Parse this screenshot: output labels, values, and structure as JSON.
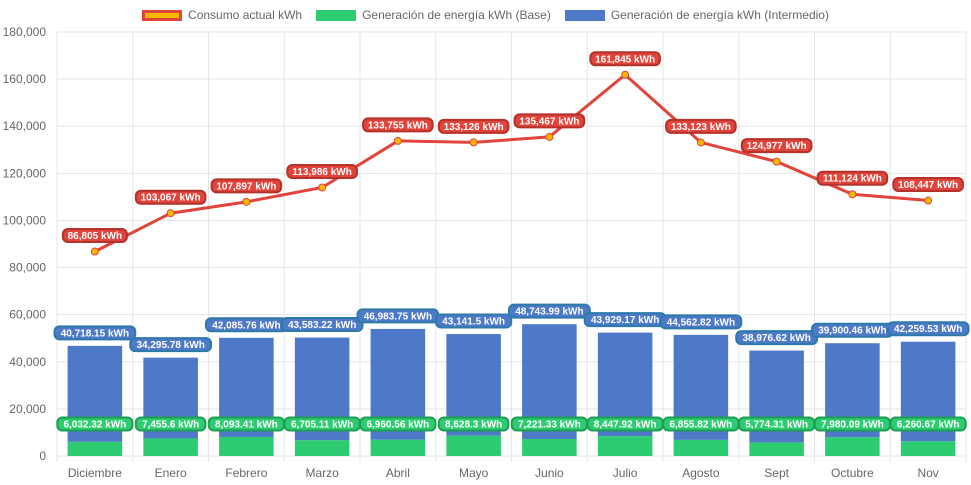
{
  "chart_data": {
    "type": "bar+line",
    "categories": [
      "Diciembre",
      "Enero",
      "Febrero",
      "Marzo",
      "Abril",
      "Mayo",
      "Junio",
      "Julio",
      "Agosto",
      "Sept",
      "Octubre",
      "Nov"
    ],
    "ylim": [
      0,
      180000
    ],
    "yticks": [
      0,
      20000,
      40000,
      60000,
      80000,
      100000,
      120000,
      140000,
      160000,
      180000
    ],
    "ytick_labels": [
      "0",
      "20,000",
      "40,000",
      "60,000",
      "80,000",
      "100,000",
      "120,000",
      "140,000",
      "160,000",
      "180,000"
    ],
    "grid": true,
    "legend_position": "top-center",
    "series": [
      {
        "name": "Consumo actual kWh",
        "type": "line",
        "color": "#e0443a",
        "point_color": "#f5b800",
        "values": [
          86805,
          103067,
          107897,
          113986,
          133755,
          133126,
          135467,
          161845,
          133123,
          124977,
          111124,
          108447
        ],
        "labels": [
          "86,805 kWh",
          "103,067 kWh",
          "107,897 kWh",
          "113,986 kWh",
          "133,755 kWh",
          "133,126 kWh",
          "135,467 kWh",
          "161,845 kWh",
          "133,123 kWh",
          "124,977 kWh",
          "111,124 kWh",
          "108,447 kWh"
        ]
      },
      {
        "name": "Generación de energía kWh (Base)",
        "type": "bar-stacked",
        "color": "#2ecc71",
        "values": [
          6032.32,
          7455.6,
          8093.41,
          6705.11,
          6960.56,
          8628.3,
          7221.33,
          8447.92,
          6855.82,
          5774.31,
          7980.09,
          6260.67
        ],
        "labels": [
          "6,032.32 kWh",
          "7,455.6 kWh",
          "8,093.41 kWh",
          "6,705.11 kWh",
          "6,960.56 kWh",
          "8,628.3 kWh",
          "7,221.33 kWh",
          "8,447.92 kWh",
          "6,855.82 kWh",
          "5,774.31 kWh",
          "7,980.09 kWh",
          "6,260.67 kWh"
        ]
      },
      {
        "name": "Generación de energía kWh (Intermedio)",
        "type": "bar-stacked",
        "color": "#4e79c9",
        "values": [
          40718.15,
          34295.78,
          42085.76,
          43583.22,
          46983.75,
          43141.5,
          48743.99,
          43929.17,
          44562.82,
          38976.62,
          39900.46,
          42259.53
        ],
        "labels": [
          "40,718.15 kWh",
          "34,295.78 kWh",
          "42,085.76 kWh",
          "43,583.22 kWh",
          "46,983.75 kWh",
          "43,141.5 kWh",
          "48,743.99 kWh",
          "43,929.17 kWh",
          "44,562.82 kWh",
          "38,976.62 kWh",
          "39,900.46 kWh",
          "42,259.53 kWh"
        ]
      }
    ]
  }
}
